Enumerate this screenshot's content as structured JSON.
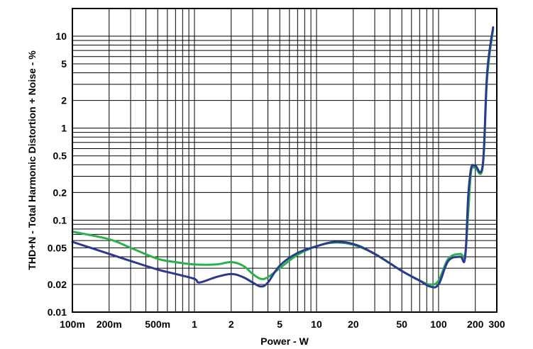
{
  "chart_data": {
    "type": "line",
    "title": "",
    "xlabel": "Power - W",
    "ylabel": "THD+N - Total Harmonic Distortion + Noise - %",
    "x_scale": "log",
    "y_scale": "log",
    "xlim": [
      0.1,
      300
    ],
    "ylim": [
      0.01,
      20
    ],
    "grid": true,
    "legend": "none",
    "x_ticks": [
      {
        "value": 0.1,
        "label": "100m"
      },
      {
        "value": 0.2,
        "label": "200m"
      },
      {
        "value": 0.5,
        "label": "500m"
      },
      {
        "value": 1,
        "label": "1"
      },
      {
        "value": 2,
        "label": "2"
      },
      {
        "value": 5,
        "label": "5"
      },
      {
        "value": 10,
        "label": "10"
      },
      {
        "value": 20,
        "label": "20"
      },
      {
        "value": 50,
        "label": "50"
      },
      {
        "value": 100,
        "label": "100"
      },
      {
        "value": 200,
        "label": "200"
      },
      {
        "value": 300,
        "label": "300"
      }
    ],
    "y_ticks": [
      {
        "value": 0.01,
        "label": "0.01"
      },
      {
        "value": 0.02,
        "label": "0.02"
      },
      {
        "value": 0.05,
        "label": "0.05"
      },
      {
        "value": 0.1,
        "label": "0.1"
      },
      {
        "value": 0.2,
        "label": "0.2"
      },
      {
        "value": 0.5,
        "label": "0.5"
      },
      {
        "value": 1,
        "label": "1"
      },
      {
        "value": 2,
        "label": "2"
      },
      {
        "value": 5,
        "label": "5"
      },
      {
        "value": 10,
        "label": "10"
      }
    ],
    "series": [
      {
        "color": "#2ab24a",
        "x": [
          0.1,
          0.2,
          0.3,
          0.5,
          0.7,
          1.0,
          1.5,
          2.0,
          2.5,
          3.0,
          3.5,
          4.0,
          5.0,
          7.0,
          10,
          14,
          20,
          30,
          50,
          70,
          85,
          100,
          120,
          150,
          165,
          175,
          185,
          200,
          230,
          250,
          280
        ],
        "y": [
          0.075,
          0.062,
          0.05,
          0.038,
          0.035,
          0.033,
          0.033,
          0.035,
          0.032,
          0.026,
          0.023,
          0.024,
          0.03,
          0.042,
          0.052,
          0.057,
          0.054,
          0.043,
          0.028,
          0.022,
          0.02,
          0.022,
          0.038,
          0.043,
          0.042,
          0.12,
          0.34,
          0.37,
          0.38,
          3.5,
          12
        ]
      },
      {
        "color": "#2b3990",
        "x": [
          0.1,
          0.2,
          0.3,
          0.5,
          0.7,
          1.0,
          1.1,
          1.5,
          2.0,
          2.5,
          3.0,
          3.5,
          4.0,
          5.0,
          7.0,
          10,
          14,
          20,
          30,
          50,
          70,
          85,
          100,
          120,
          150,
          165,
          175,
          185,
          200,
          230,
          250,
          280
        ],
        "y": [
          0.058,
          0.043,
          0.036,
          0.029,
          0.026,
          0.023,
          0.021,
          0.024,
          0.026,
          0.024,
          0.021,
          0.019,
          0.021,
          0.032,
          0.044,
          0.052,
          0.058,
          0.055,
          0.043,
          0.028,
          0.022,
          0.019,
          0.02,
          0.036,
          0.04,
          0.039,
          0.18,
          0.37,
          0.39,
          0.4,
          4.0,
          12.5
        ]
      }
    ]
  }
}
